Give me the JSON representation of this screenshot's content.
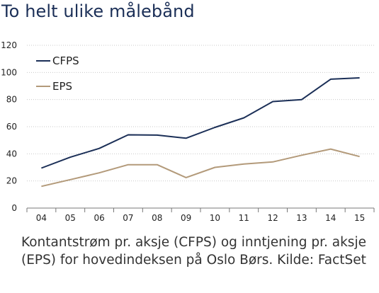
{
  "title": "To helt ulike målebånd",
  "caption": {
    "line1": "Kontantstrøm pr. aksje (CFPS) og inntjening pr. aksje",
    "line2": "(EPS) for hovedindeksen på Oslo Børs. Kilde: FactSet"
  },
  "chart_data": {
    "type": "line",
    "categories": [
      "04",
      "05",
      "06",
      "07",
      "08",
      "09",
      "10",
      "11",
      "12",
      "13",
      "14",
      "15"
    ],
    "series": [
      {
        "name": "CFPS",
        "color": "#1b2f57",
        "values": [
          29.5,
          37.5,
          44,
          54,
          53.8,
          51.5,
          59.5,
          66.5,
          78.5,
          80,
          95,
          96
        ]
      },
      {
        "name": "EPS",
        "color": "#b39a7a",
        "values": [
          16,
          21,
          26,
          32,
          32,
          22.5,
          30,
          32.5,
          34,
          39,
          43.5,
          38
        ]
      }
    ],
    "yticks": [
      0,
      20,
      40,
      60,
      80,
      100,
      120
    ],
    "ylim": [
      0,
      120
    ],
    "grid": "horizontal",
    "legend": "top-left"
  }
}
